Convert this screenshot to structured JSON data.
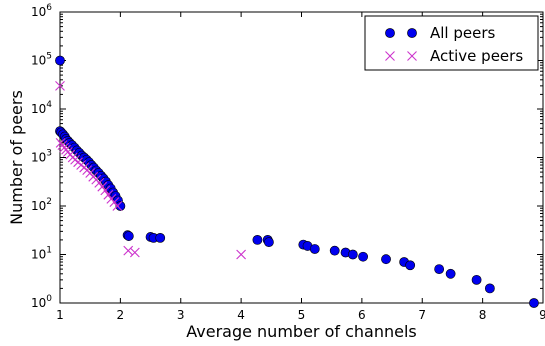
{
  "chart_data": {
    "type": "scatter",
    "xlabel": "Average number of channels",
    "ylabel": "Number of peers",
    "xlim": [
      1,
      9
    ],
    "ylim": [
      1,
      1000000
    ],
    "yscale": "log",
    "grid": false,
    "legend_position": "top-right",
    "x_ticks": [
      "1",
      "2",
      "3",
      "4",
      "5",
      "6",
      "7",
      "8",
      "9"
    ],
    "y_ticks": [
      {
        "base": "10",
        "exp": "0",
        "value": 1
      },
      {
        "base": "10",
        "exp": "1",
        "value": 10
      },
      {
        "base": "10",
        "exp": "2",
        "value": 100
      },
      {
        "base": "10",
        "exp": "3",
        "value": 1000
      },
      {
        "base": "10",
        "exp": "4",
        "value": 10000
      },
      {
        "base": "10",
        "exp": "5",
        "value": 100000
      },
      {
        "base": "10",
        "exp": "6",
        "value": 1000000
      }
    ],
    "series": [
      {
        "name": "All peers",
        "marker": "circle",
        "color": "#0000ee",
        "points": [
          [
            1.0,
            100000
          ],
          [
            1.0,
            3500
          ],
          [
            1.02,
            3300
          ],
          [
            1.05,
            3000
          ],
          [
            1.08,
            2700
          ],
          [
            1.1,
            2400
          ],
          [
            1.13,
            2200
          ],
          [
            1.16,
            2000
          ],
          [
            1.2,
            1800
          ],
          [
            1.24,
            1600
          ],
          [
            1.28,
            1400
          ],
          [
            1.32,
            1250
          ],
          [
            1.36,
            1100
          ],
          [
            1.4,
            1000
          ],
          [
            1.44,
            900
          ],
          [
            1.48,
            800
          ],
          [
            1.52,
            700
          ],
          [
            1.56,
            620
          ],
          [
            1.6,
            540
          ],
          [
            1.64,
            480
          ],
          [
            1.68,
            420
          ],
          [
            1.72,
            370
          ],
          [
            1.76,
            320
          ],
          [
            1.8,
            270
          ],
          [
            1.84,
            230
          ],
          [
            1.88,
            190
          ],
          [
            1.92,
            160
          ],
          [
            1.96,
            130
          ],
          [
            2.0,
            100
          ],
          [
            2.12,
            25
          ],
          [
            2.14,
            24
          ],
          [
            2.5,
            23
          ],
          [
            2.55,
            22
          ],
          [
            2.66,
            22
          ],
          [
            4.27,
            20
          ],
          [
            4.44,
            20
          ],
          [
            4.46,
            18
          ],
          [
            5.03,
            16
          ],
          [
            5.1,
            15
          ],
          [
            5.22,
            13
          ],
          [
            5.55,
            12
          ],
          [
            5.73,
            11
          ],
          [
            5.85,
            10
          ],
          [
            6.02,
            9
          ],
          [
            6.4,
            8
          ],
          [
            6.7,
            7
          ],
          [
            6.8,
            6
          ],
          [
            7.28,
            5
          ],
          [
            7.47,
            4
          ],
          [
            7.9,
            3
          ],
          [
            8.12,
            2
          ],
          [
            8.85,
            1
          ]
        ]
      },
      {
        "name": "Active peers",
        "marker": "x",
        "color": "#cc33cc",
        "points": [
          [
            1.0,
            30000
          ],
          [
            1.01,
            2000
          ],
          [
            1.04,
            1800
          ],
          [
            1.07,
            1600
          ],
          [
            1.1,
            1450
          ],
          [
            1.13,
            1300
          ],
          [
            1.17,
            1150
          ],
          [
            1.21,
            1000
          ],
          [
            1.25,
            900
          ],
          [
            1.3,
            800
          ],
          [
            1.35,
            700
          ],
          [
            1.4,
            620
          ],
          [
            1.45,
            550
          ],
          [
            1.5,
            480
          ],
          [
            1.55,
            400
          ],
          [
            1.6,
            350
          ],
          [
            1.65,
            300
          ],
          [
            1.7,
            250
          ],
          [
            1.75,
            210
          ],
          [
            1.8,
            170
          ],
          [
            1.85,
            140
          ],
          [
            1.9,
            120
          ],
          [
            1.95,
            100
          ],
          [
            2.13,
            12
          ],
          [
            2.24,
            11
          ],
          [
            4.0,
            10
          ]
        ]
      }
    ]
  }
}
